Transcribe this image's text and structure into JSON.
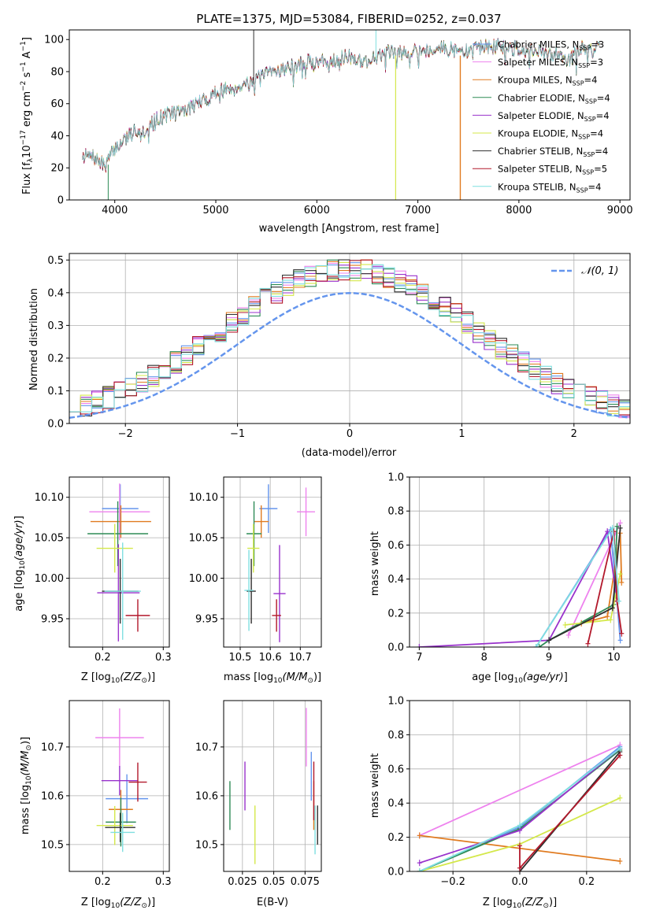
{
  "title": "PLATE=1375, MJD=53084, FIBERID=0252, z=0.037",
  "models": [
    {
      "name": "Chabrier MILES, N",
      "sub": "SSP",
      "tail": "=3",
      "color": "#6495ed"
    },
    {
      "name": "Salpeter MILES, N",
      "sub": "SSP",
      "tail": "=3",
      "color": "#ee82ee"
    },
    {
      "name": "Kroupa MILES, N",
      "sub": "SSP",
      "tail": "=4",
      "color": "#e07b20"
    },
    {
      "name": "Chabrier ELODIE, N",
      "sub": "SSP",
      "tail": "=4",
      "color": "#2e8b57"
    },
    {
      "name": "Salpeter ELODIE, N",
      "sub": "SSP",
      "tail": "=4",
      "color": "#9932cc"
    },
    {
      "name": "Kroupa ELODIE, N",
      "sub": "SSP",
      "tail": "=4",
      "color": "#d4e84a"
    },
    {
      "name": "Chabrier STELIB, N",
      "sub": "SSP",
      "tail": "=4",
      "color": "#2f2f2f"
    },
    {
      "name": "Salpeter STELIB, N",
      "sub": "SSP",
      "tail": "=5",
      "color": "#b2182b"
    },
    {
      "name": "Kroupa STELIB, N",
      "sub": "SSP",
      "tail": "=4",
      "color": "#7fdfe0"
    }
  ],
  "labels": {
    "spec_x": "wavelength [Angstrom, rest frame]",
    "spec_y": "Flux [f",
    "hist_x": "(data-model)/error",
    "hist_y": "Normed distribution",
    "hist_legend": "𝒩(0, 1)",
    "age_y": "age  [log",
    "Z_x": "Z [log",
    "mass_x": "mass [log",
    "mass_y": "mass [log",
    "ebv_x": "E(B-V)",
    "mw_y": "mass weight",
    "age_x": "age  [log"
  },
  "chart_data": [
    {
      "type": "line",
      "panel": "spectrum",
      "xlim": [
        3550,
        9100
      ],
      "ylim": [
        0,
        106
      ],
      "xticks": [
        4000,
        5000,
        6000,
        7000,
        8000,
        9000
      ],
      "yticks": [
        0,
        20,
        40,
        60,
        80,
        100
      ],
      "continuum": [
        [
          3680,
          28
        ],
        [
          3800,
          26
        ],
        [
          3900,
          21
        ],
        [
          4000,
          32
        ],
        [
          4100,
          38
        ],
        [
          4200,
          44
        ],
        [
          4300,
          43
        ],
        [
          4400,
          50
        ],
        [
          4500,
          53
        ],
        [
          4600,
          55
        ],
        [
          4700,
          56
        ],
        [
          4800,
          60
        ],
        [
          4900,
          62
        ],
        [
          5000,
          67
        ],
        [
          5100,
          69
        ],
        [
          5200,
          70
        ],
        [
          5300,
          73
        ],
        [
          5400,
          75
        ],
        [
          5500,
          78
        ],
        [
          5600,
          81
        ],
        [
          5700,
          82
        ],
        [
          5800,
          84
        ],
        [
          5900,
          86
        ],
        [
          6000,
          86
        ],
        [
          6100,
          87
        ],
        [
          6200,
          88
        ],
        [
          6300,
          89
        ],
        [
          6400,
          88
        ],
        [
          6500,
          86
        ],
        [
          6600,
          90
        ],
        [
          6700,
          92
        ],
        [
          6800,
          91
        ],
        [
          6900,
          93
        ],
        [
          7000,
          94
        ],
        [
          7100,
          93
        ],
        [
          7200,
          95
        ],
        [
          7300,
          94
        ],
        [
          7400,
          93
        ],
        [
          7500,
          92
        ],
        [
          7600,
          96
        ],
        [
          7700,
          95
        ],
        [
          7800,
          96
        ],
        [
          7900,
          94
        ],
        [
          8000,
          95
        ],
        [
          8100,
          93
        ],
        [
          8200,
          92
        ],
        [
          8300,
          90
        ],
        [
          8400,
          92
        ],
        [
          8500,
          87
        ],
        [
          8600,
          95
        ],
        [
          8700,
          93
        ],
        [
          8800,
          94
        ]
      ]
    },
    {
      "type": "line",
      "panel": "residual-histogram",
      "xlim": [
        -2.5,
        2.5
      ],
      "ylim": [
        0,
        0.52
      ],
      "xticks": [
        -2,
        -1,
        0,
        1,
        2
      ],
      "yticks": [
        0.0,
        0.1,
        0.2,
        0.3,
        0.4,
        0.5
      ],
      "reference": "normal distribution N(0,1)"
    },
    {
      "type": "scatter",
      "panel": "age-vs-Z",
      "xlim": [
        0.145,
        0.31
      ],
      "ylim": [
        9.915,
        10.125
      ],
      "xticks": [
        0.2,
        0.3
      ],
      "yticks": [
        9.95,
        10.0,
        10.05,
        10.1
      ],
      "points": [
        [
          0.229,
          10.086,
          0.06,
          0.03
        ],
        [
          0.228,
          10.082,
          0.1,
          0.035
        ],
        [
          0.23,
          10.07,
          0.1,
          0.02
        ],
        [
          0.225,
          10.055,
          0.1,
          0.04
        ],
        [
          0.226,
          9.982,
          0.07,
          0.06
        ],
        [
          0.22,
          10.037,
          0.06,
          0.03
        ],
        [
          0.229,
          9.984,
          0.06,
          0.04
        ],
        [
          0.258,
          9.954,
          0.04,
          0.02
        ],
        [
          0.233,
          9.984,
          0.06,
          0.06
        ]
      ]
    },
    {
      "type": "scatter",
      "panel": "age-vs-mass",
      "xlim": [
        10.445,
        10.77
      ],
      "ylim": [
        9.915,
        10.125
      ],
      "xticks": [
        10.5,
        10.6,
        10.7
      ],
      "yticks": [
        9.95,
        10.0,
        10.05,
        10.1
      ],
      "points": [
        [
          10.594,
          10.086,
          0.06,
          0.03
        ],
        [
          10.719,
          10.082,
          0.06,
          0.03
        ],
        [
          10.57,
          10.07,
          0.05,
          0.02
        ],
        [
          10.546,
          10.055,
          0.05,
          0.04
        ],
        [
          10.631,
          9.981,
          0.04,
          0.06
        ],
        [
          10.544,
          10.037,
          0.04,
          0.03
        ],
        [
          10.537,
          9.984,
          0.03,
          0.04
        ],
        [
          10.621,
          9.954,
          0.03,
          0.02
        ],
        [
          10.529,
          9.985,
          0.03,
          0.05
        ]
      ]
    },
    {
      "type": "line",
      "panel": "mass-weight-vs-age",
      "xlim": [
        6.85,
        10.25
      ],
      "ylim": [
        0,
        1.0
      ],
      "xticks": [
        7,
        8,
        9,
        10
      ],
      "yticks": [
        0.0,
        0.2,
        0.4,
        0.6,
        0.8,
        1.0
      ],
      "series": [
        {
          "points": [
            [
              8.8,
              0.0
            ],
            [
              9.95,
              0.69
            ],
            [
              10.05,
              0.27
            ],
            [
              10.1,
              0.04
            ]
          ]
        },
        {
          "points": [
            [
              9.3,
              0.07
            ],
            [
              10.1,
              0.73
            ]
          ]
        },
        {
          "points": [
            [
              9.5,
              0.14
            ],
            [
              9.9,
              0.18
            ],
            [
              10.1,
              0.67
            ],
            [
              10.12,
              0.38
            ]
          ]
        },
        {
          "points": [
            [
              8.85,
              0.0
            ],
            [
              9.0,
              0.04
            ],
            [
              10.0,
              0.25
            ],
            [
              10.05,
              0.71
            ]
          ]
        },
        {
          "points": [
            [
              7.0,
              0.0
            ],
            [
              9.0,
              0.04
            ],
            [
              9.9,
              0.68
            ],
            [
              10.05,
              0.27
            ]
          ]
        },
        {
          "points": [
            [
              9.25,
              0.13
            ],
            [
              9.95,
              0.16
            ],
            [
              10.1,
              0.43
            ]
          ]
        },
        {
          "points": [
            [
              9.0,
              0.04
            ],
            [
              9.98,
              0.23
            ],
            [
              10.1,
              0.7
            ]
          ]
        },
        {
          "points": [
            [
              9.6,
              0.02
            ],
            [
              10.0,
              0.68
            ],
            [
              10.05,
              0.27
            ],
            [
              10.12,
              0.08
            ]
          ]
        },
        {
          "points": [
            [
              8.8,
              0.0
            ],
            [
              9.98,
              0.7
            ],
            [
              10.08,
              0.27
            ]
          ]
        }
      ]
    },
    {
      "type": "scatter",
      "panel": "mass-vs-Z",
      "xlim": [
        0.145,
        0.31
      ],
      "ylim": [
        10.445,
        10.795
      ],
      "xticks": [
        0.2,
        0.3
      ],
      "yticks": [
        10.5,
        10.6,
        10.7
      ],
      "points": [
        [
          0.24,
          10.594,
          0.07,
          0.05
        ],
        [
          0.228,
          10.719,
          0.08,
          0.06
        ],
        [
          0.23,
          10.572,
          0.04,
          0.04
        ],
        [
          0.23,
          10.546,
          0.05,
          0.05
        ],
        [
          0.228,
          10.631,
          0.06,
          0.03
        ],
        [
          0.22,
          10.539,
          0.06,
          0.04
        ],
        [
          0.229,
          10.535,
          0.05,
          0.03
        ],
        [
          0.258,
          10.628,
          0.03,
          0.04
        ],
        [
          0.233,
          10.525,
          0.04,
          0.04
        ]
      ]
    },
    {
      "type": "scatter",
      "panel": "mass-vs-EBV",
      "xlim": [
        0.01,
        0.088
      ],
      "ylim": [
        10.445,
        10.795
      ],
      "xticks": [
        0.025,
        0.05,
        0.075
      ],
      "points": [
        [
          0.08,
          10.64,
          0,
          0.05
        ],
        [
          0.076,
          10.72,
          0,
          0.06
        ],
        [
          0.082,
          10.58,
          0,
          0.05
        ],
        [
          0.015,
          10.58,
          0,
          0.05
        ],
        [
          0.027,
          10.62,
          0,
          0.05
        ],
        [
          0.035,
          10.52,
          0,
          0.06
        ],
        [
          0.085,
          10.54,
          0,
          0.04
        ],
        [
          0.082,
          10.61,
          0,
          0.06
        ],
        [
          0.083,
          10.53,
          0,
          0.05
        ]
      ]
    },
    {
      "type": "line",
      "panel": "mass-weight-vs-Z",
      "xlim": [
        -0.33,
        0.33
      ],
      "ylim": [
        0,
        1.0
      ],
      "xticks": [
        -0.2,
        0.0,
        0.2
      ],
      "yticks": [
        0.0,
        0.2,
        0.4,
        0.6,
        0.8,
        1.0
      ],
      "series": [
        {
          "points": [
            [
              -0.3,
              0.0
            ],
            [
              0.0,
              0.26
            ],
            [
              0.3,
              0.73
            ]
          ]
        },
        {
          "points": [
            [
              -0.3,
              0.21
            ],
            [
              0.3,
              0.74
            ]
          ]
        },
        {
          "points": [
            [
              -0.3,
              0.21
            ],
            [
              0.3,
              0.06
            ]
          ]
        },
        {
          "points": [
            [
              -0.3,
              0.0
            ],
            [
              0.0,
              0.25
            ],
            [
              0.3,
              0.71
            ]
          ]
        },
        {
          "points": [
            [
              -0.3,
              0.05
            ],
            [
              0.0,
              0.24
            ],
            [
              0.3,
              0.72
            ]
          ]
        },
        {
          "points": [
            [
              -0.3,
              0.0
            ],
            [
              0.0,
              0.16
            ],
            [
              0.3,
              0.43
            ]
          ]
        },
        {
          "points": [
            [
              0.0,
              0.0
            ],
            [
              0.3,
              0.7
            ]
          ]
        },
        {
          "points": [
            [
              0.0,
              0.15
            ],
            [
              0.0,
              0.02
            ],
            [
              0.3,
              0.68
            ]
          ]
        },
        {
          "points": [
            [
              -0.3,
              0.0
            ],
            [
              0.0,
              0.27
            ],
            [
              0.3,
              0.72
            ]
          ]
        }
      ]
    }
  ]
}
